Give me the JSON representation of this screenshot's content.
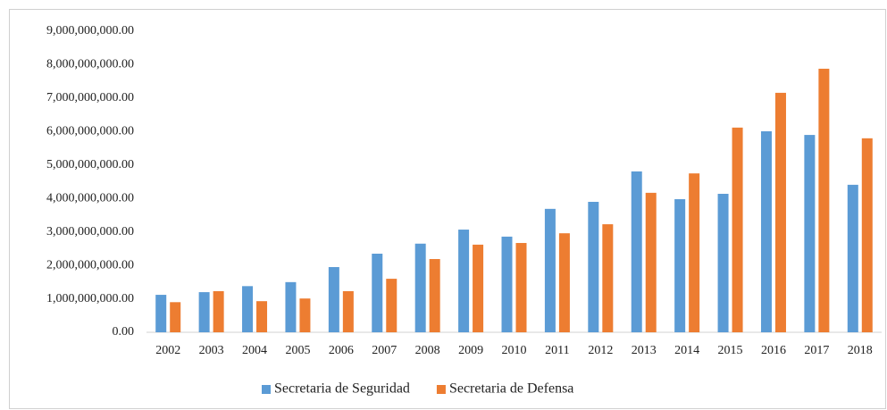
{
  "chart_data": {
    "type": "bar",
    "categories": [
      "2002",
      "2003",
      "2004",
      "2005",
      "2006",
      "2007",
      "2008",
      "2009",
      "2010",
      "2011",
      "2012",
      "2013",
      "2014",
      "2015",
      "2016",
      "2017",
      "2018"
    ],
    "series": [
      {
        "name": "Secretaria de Seguridad",
        "color": "#5b9bd5",
        "values": [
          1120000000,
          1200000000,
          1380000000,
          1500000000,
          1950000000,
          2350000000,
          2650000000,
          3070000000,
          2860000000,
          3690000000,
          3900000000,
          4810000000,
          3980000000,
          4140000000,
          6010000000,
          5900000000,
          4410000000
        ]
      },
      {
        "name": "Secretaria de Defensa",
        "color": "#ed7d31",
        "values": [
          900000000,
          1230000000,
          930000000,
          1010000000,
          1230000000,
          1600000000,
          2190000000,
          2620000000,
          2670000000,
          2960000000,
          3230000000,
          4170000000,
          4750000000,
          6120000000,
          7160000000,
          7880000000,
          5800000000
        ]
      }
    ],
    "ylim": [
      0,
      9000000000
    ],
    "yticks": [
      {
        "value": 0,
        "label": "0.00"
      },
      {
        "value": 1000000000,
        "label": "1,000,000,000.00"
      },
      {
        "value": 2000000000,
        "label": "2,000,000,000.00"
      },
      {
        "value": 3000000000,
        "label": "3,000,000,000.00"
      },
      {
        "value": 4000000000,
        "label": "4,000,000,000.00"
      },
      {
        "value": 5000000000,
        "label": "5,000,000,000.00"
      },
      {
        "value": 6000000000,
        "label": "6,000,000,000.00"
      },
      {
        "value": 7000000000,
        "label": "7,000,000,000.00"
      },
      {
        "value": 8000000000,
        "label": "8,000,000,000.00"
      },
      {
        "value": 9000000000,
        "label": "9,000,000,000.00"
      }
    ],
    "grid": false,
    "legend": "bottom"
  }
}
